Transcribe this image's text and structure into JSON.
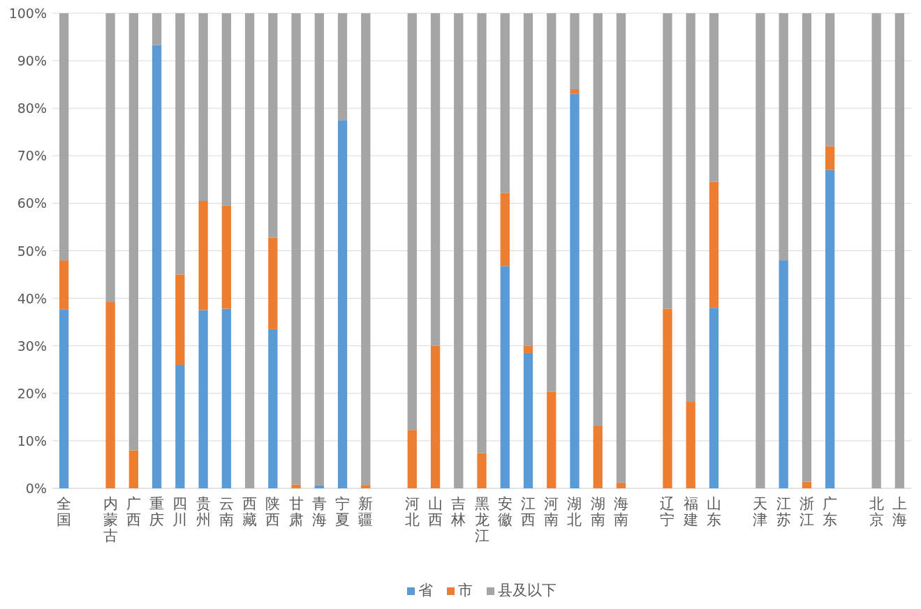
{
  "chart_data": {
    "type": "bar",
    "stacked": true,
    "legend": "bottom",
    "grid": "y",
    "ylim": [
      0,
      100
    ],
    "yticks": [
      {
        "value": 0,
        "label": "0%"
      },
      {
        "value": 10,
        "label": "10%"
      },
      {
        "value": 20,
        "label": "20%"
      },
      {
        "value": 30,
        "label": "30%"
      },
      {
        "value": 40,
        "label": "40%"
      },
      {
        "value": 50,
        "label": "50%"
      },
      {
        "value": 60,
        "label": "60%"
      },
      {
        "value": 70,
        "label": "70%"
      },
      {
        "value": 80,
        "label": "80%"
      },
      {
        "value": 90,
        "label": "90%"
      },
      {
        "value": 100,
        "label": "100%"
      }
    ],
    "categories": [
      "全国",
      null,
      "内蒙古",
      "广西",
      "重庆",
      "四川",
      "贵州",
      "云南",
      "西藏",
      "陕西",
      "甘肃",
      "青海",
      "宁夏",
      "新疆",
      null,
      "河北",
      "山西",
      "吉林",
      "黑龙江",
      "安徽",
      "江西",
      "河南",
      "湖北",
      "湖南",
      "海南",
      null,
      "辽宁",
      "福建",
      "山东",
      null,
      "天津",
      "江苏",
      "浙江",
      "广东",
      null,
      "北京",
      "上海"
    ],
    "series": [
      {
        "name": "省",
        "color": "#5b9bd5",
        "values": [
          37.7,
          null,
          0,
          0,
          93.3,
          26,
          37.5,
          37.8,
          0,
          33.5,
          0,
          0.6,
          77.5,
          0,
          null,
          0,
          0,
          0,
          0,
          46.8,
          28.5,
          0,
          83,
          0,
          0,
          null,
          0,
          0,
          38,
          null,
          0,
          48,
          0,
          67,
          null,
          0,
          0
        ]
      },
      {
        "name": "市",
        "color": "#ed7d31",
        "values": [
          10.3,
          null,
          39.2,
          8,
          0,
          19,
          23,
          21.7,
          0,
          19.3,
          0.8,
          0,
          0,
          0.7,
          null,
          12.3,
          30,
          0,
          7.4,
          15.4,
          1.5,
          20.3,
          1,
          13.2,
          1.2,
          null,
          37.8,
          18.2,
          26.5,
          null,
          0,
          0,
          1.4,
          5,
          null,
          0,
          0
        ]
      },
      {
        "name": "县及以下",
        "color": "#a5a5a5",
        "values": [
          52,
          null,
          60.8,
          92,
          6.7,
          55,
          39.5,
          40.5,
          100,
          47.2,
          99.2,
          99.4,
          22.5,
          99.3,
          null,
          87.7,
          70,
          100,
          92.6,
          37.8,
          70,
          79.7,
          16,
          86.8,
          98.8,
          null,
          62.2,
          81.8,
          35.5,
          null,
          100,
          52,
          98.6,
          28,
          null,
          100,
          100
        ]
      }
    ]
  }
}
